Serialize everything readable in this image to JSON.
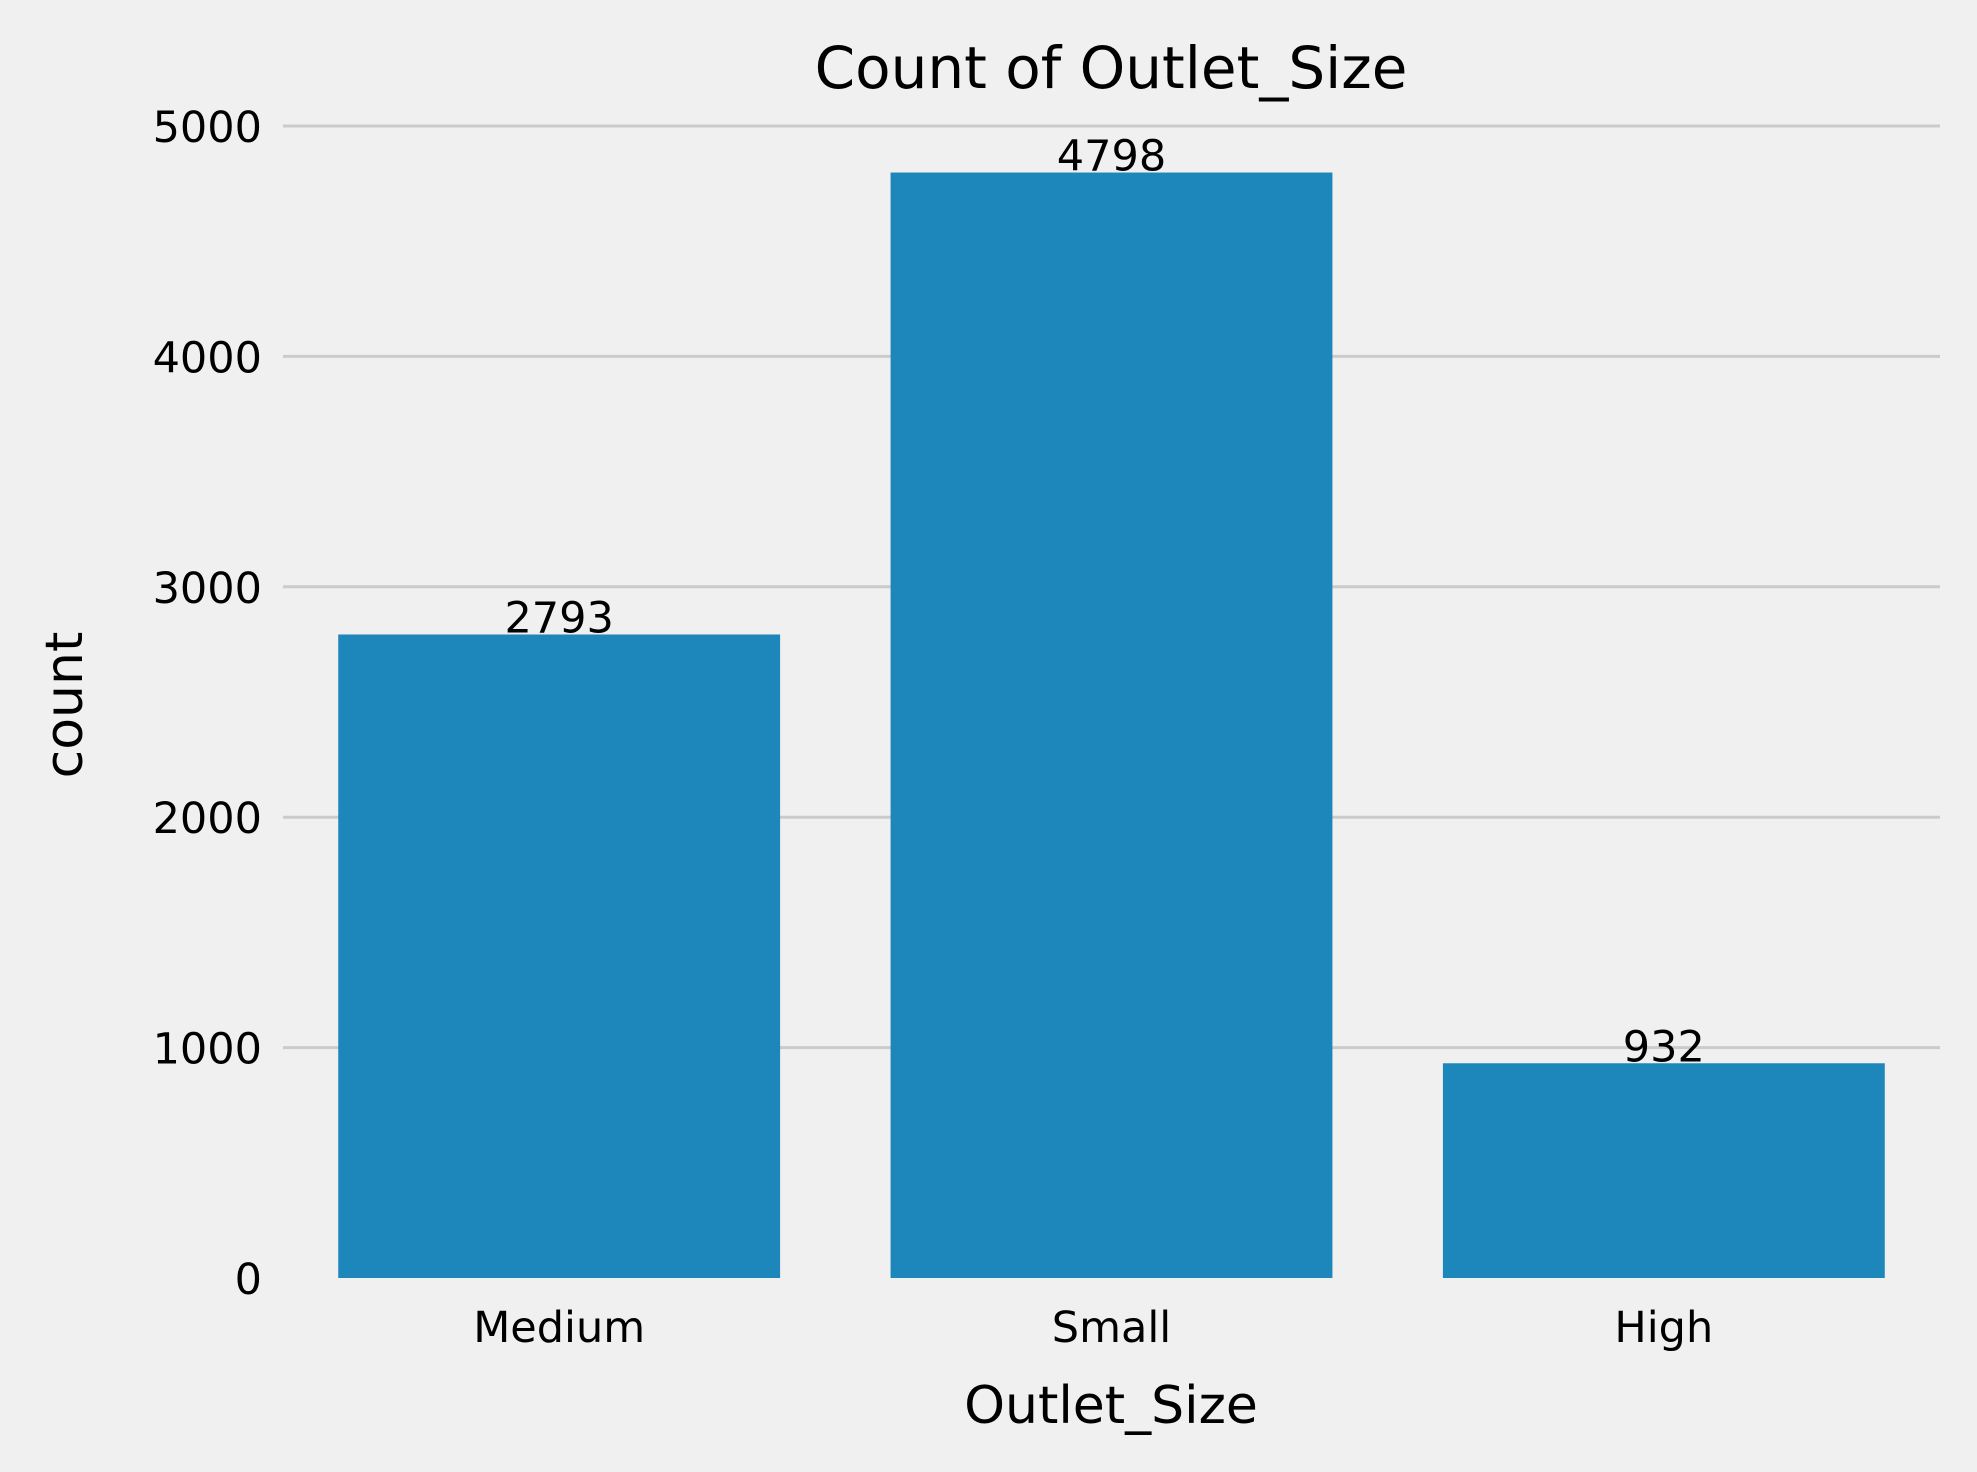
{
  "chart_data": {
    "type": "bar",
    "title": "Count of Outlet_Size",
    "xlabel": "Outlet_Size",
    "ylabel": "count",
    "categories": [
      "Medium",
      "Small",
      "High"
    ],
    "values": [
      2793,
      4798,
      932
    ],
    "data_labels": [
      "2793",
      "4798",
      "932"
    ],
    "yticks": [
      0,
      1000,
      2000,
      3000,
      4000,
      5000
    ],
    "ytick_labels": [
      "0",
      "1000",
      "2000",
      "3000",
      "4000",
      "5000"
    ],
    "ylim": [
      0,
      5000
    ],
    "grid": "horizontal",
    "bar_color": "#1d86ba",
    "background_color": "#f0f0f0",
    "grid_color": "#cbcbcb"
  }
}
